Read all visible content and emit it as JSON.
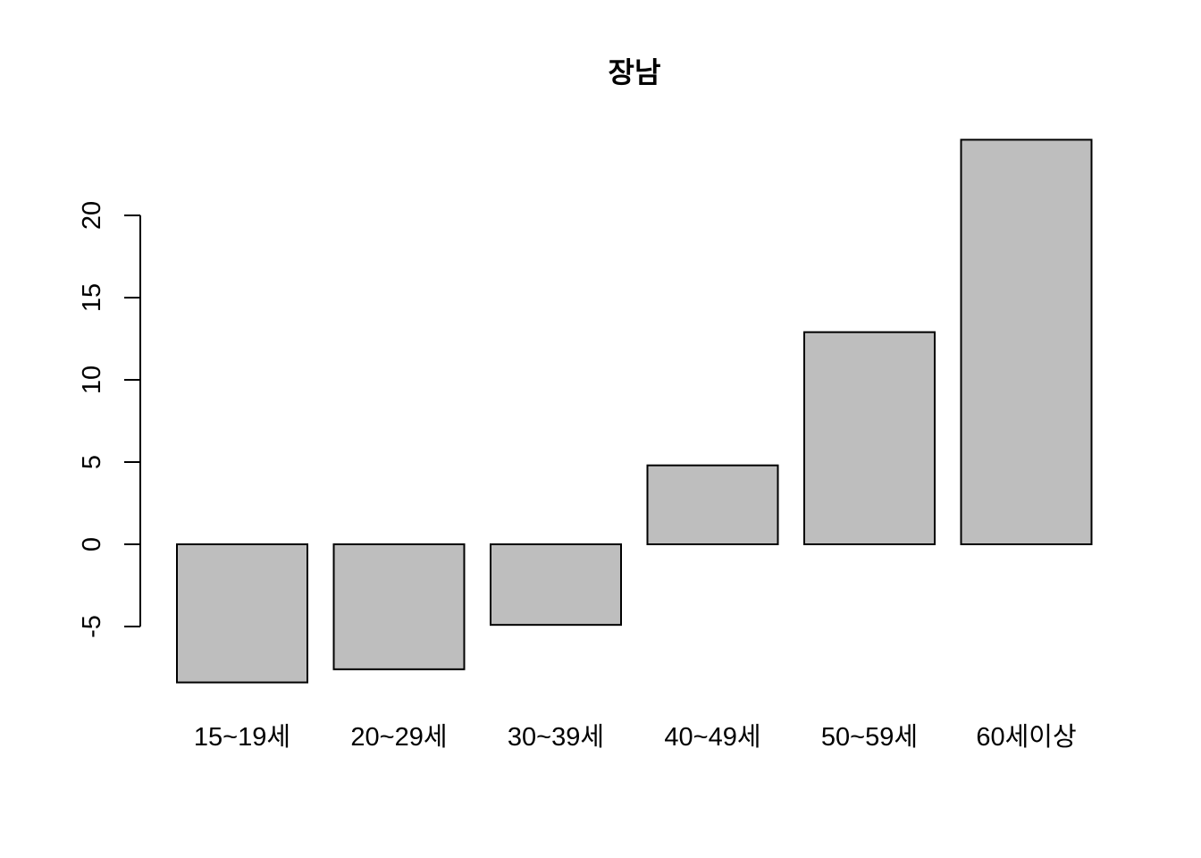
{
  "chart_data": {
    "type": "bar",
    "title": "장남",
    "xlabel": "",
    "ylabel": "",
    "categories": [
      "15~19세",
      "20~29세",
      "30~39세",
      "40~49세",
      "50~59세",
      "60세이상"
    ],
    "values": [
      -8.4,
      -7.6,
      -4.9,
      4.8,
      12.9,
      24.6
    ],
    "y_ticks": [
      "-5",
      "0",
      "5",
      "10",
      "15",
      "20"
    ],
    "ylim": [
      -8.4,
      24.6
    ],
    "bar_color": "#bebebe",
    "grid": false,
    "legend": "none"
  }
}
